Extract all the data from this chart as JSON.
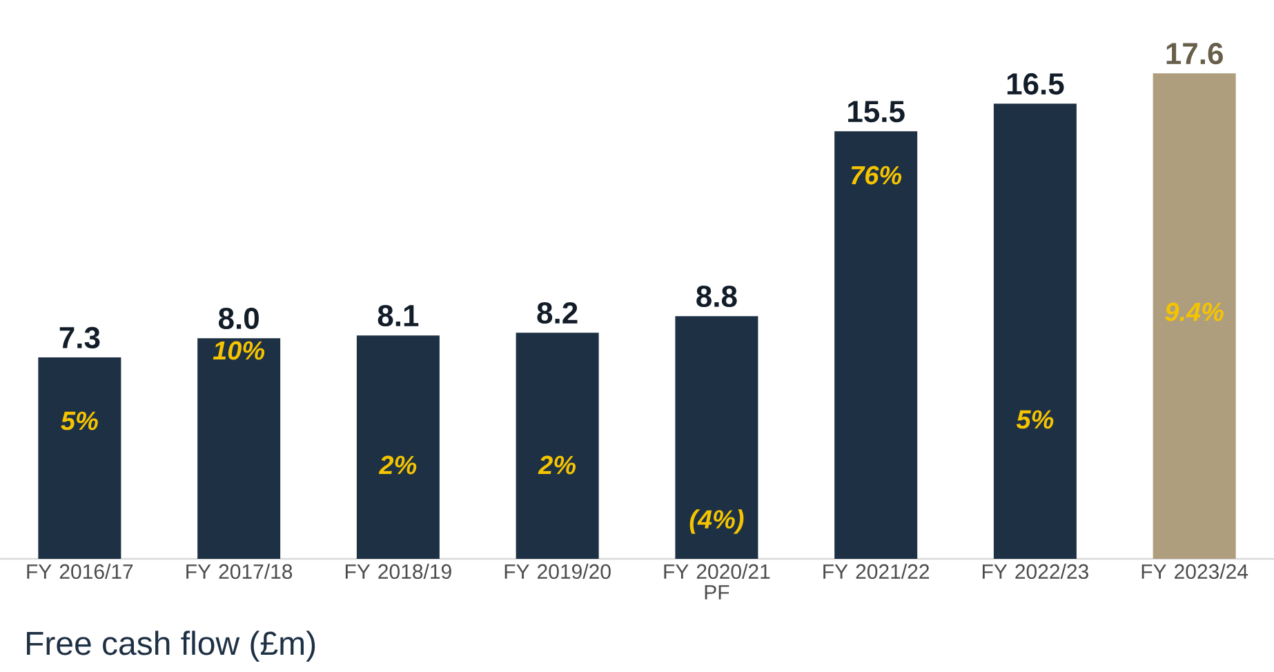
{
  "chart_data": {
    "type": "bar",
    "title": "Free cash flow (£m)",
    "categories": [
      "FY 2016/17",
      "FY 2017/18",
      "FY 2018/19",
      "FY 2019/20",
      "FY 2020/21 PF",
      "FY 2021/22",
      "FY 2022/23",
      "FY 2023/24"
    ],
    "values": [
      7.3,
      8.0,
      8.1,
      8.2,
      8.8,
      15.5,
      16.5,
      17.6
    ],
    "colors": [
      "#1e3044",
      "#1e3044",
      "#1e3044",
      "#1e3044",
      "#1e3044",
      "#1e3044",
      "#1e3044",
      "#ae9e7e"
    ],
    "value_labels": [
      "7.3",
      "8.0",
      "8.1",
      "8.2",
      "8.8",
      "15.5",
      "16.5",
      "17.6"
    ],
    "annotations": [
      "5%",
      "10%",
      "2%",
      "2%",
      "(4%)",
      "76%",
      "5%",
      "9.4%"
    ]
  }
}
